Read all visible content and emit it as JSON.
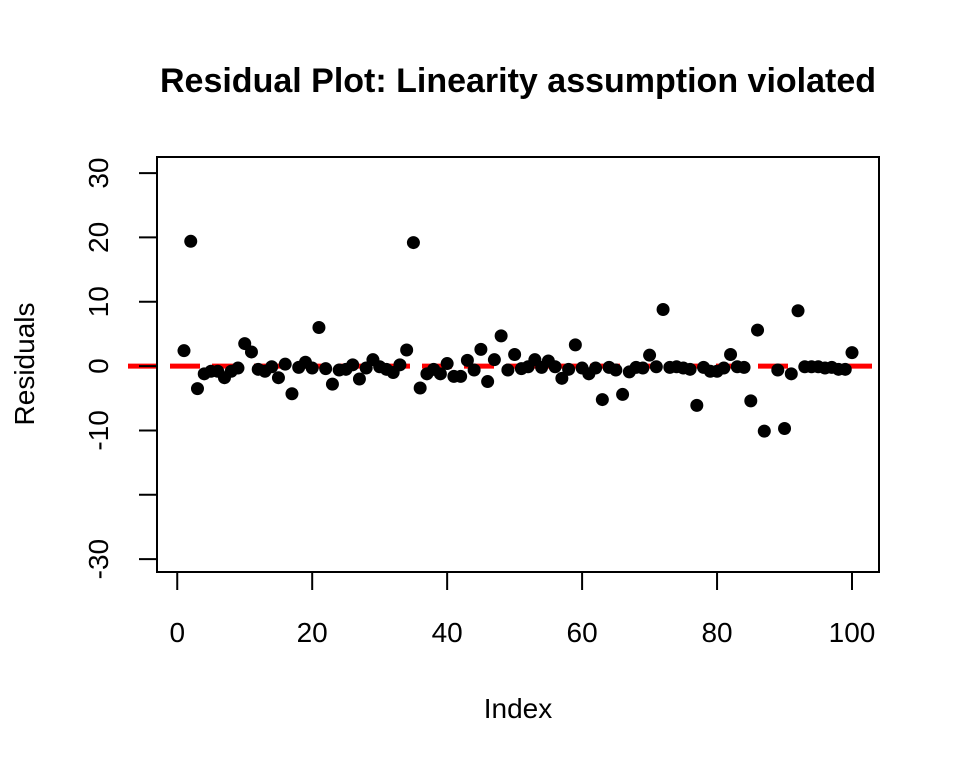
{
  "chart_data": {
    "type": "scatter",
    "title": "Residual Plot: Linearity assumption violated",
    "xlabel": "Index",
    "ylabel": "Residuals",
    "xlim": [
      -3,
      104
    ],
    "ylim": [
      -32,
      32.5
    ],
    "x_ticks": [
      0,
      20,
      40,
      60,
      80,
      100
    ],
    "x_tick_labels": [
      "0",
      "20",
      "40",
      "60",
      "80",
      "100"
    ],
    "y_ticks": [
      -30,
      -20,
      -10,
      0,
      10,
      20,
      30
    ],
    "y_tick_labels": [
      "-30",
      "",
      "-10",
      "0",
      "10",
      "20",
      "30"
    ],
    "grid": false,
    "reference_line": {
      "y": 0,
      "style": "dashed",
      "color": "#ff0000"
    },
    "colors": {
      "points": "#000000",
      "reference_line": "#ff0000"
    },
    "series": [
      {
        "x": [
          1,
          2,
          3,
          4,
          5,
          6,
          7,
          8,
          9,
          10,
          11,
          12,
          13,
          14,
          15,
          16,
          17,
          18,
          19,
          20,
          21,
          22,
          23,
          24,
          25,
          26,
          27,
          28,
          29,
          30,
          31,
          32,
          33,
          34,
          35,
          36,
          37,
          38,
          39,
          40,
          41,
          42,
          43,
          44,
          45,
          46,
          47,
          48,
          49,
          50,
          51,
          52,
          53,
          54,
          55,
          56,
          57,
          58,
          59,
          60,
          61,
          62,
          63,
          64,
          65,
          66,
          67,
          68,
          69,
          70,
          71,
          72,
          73,
          74,
          75,
          76,
          77,
          78,
          79,
          80,
          81,
          82,
          83,
          84,
          85,
          86,
          87,
          88,
          89,
          90,
          91,
          92,
          93,
          94,
          95,
          96,
          97,
          98,
          99,
          100
        ],
        "y": [
          2.4,
          19.4,
          -3.5,
          -1.2,
          -0.8,
          -0.8,
          -1.8,
          -0.8,
          -0.3,
          3.5,
          2.2,
          -0.5,
          -0.8,
          -0.1,
          -1.8,
          0.3,
          -4.3,
          -0.2,
          0.6,
          -0.3,
          6.0,
          -0.4,
          -2.8,
          -0.6,
          -0.5,
          0.2,
          -2.0,
          -0.3,
          1.0,
          -0.1,
          -0.5,
          -1.0,
          0.2,
          2.5,
          19.2,
          -3.4,
          -1.2,
          -0.5,
          -1.2,
          0.4,
          -1.6,
          -1.6,
          0.9,
          -0.6,
          2.6,
          -2.4,
          1.0,
          4.7,
          -0.6,
          1.8,
          -0.4,
          -0.1,
          1.0,
          -0.2,
          0.8,
          -0.1,
          -1.9,
          -0.5,
          3.3,
          -0.3,
          -1.2,
          -0.3,
          -5.2,
          -0.2,
          -0.6,
          -4.4,
          -0.9,
          -0.2,
          -0.3,
          1.7,
          -0.1,
          8.8,
          -0.2,
          -0.1,
          -0.3,
          -0.5,
          -6.1,
          -0.2,
          -0.8,
          -0.8,
          -0.3,
          1.8,
          -0.1,
          -0.2,
          -5.4,
          5.6,
          -10.1,
          null,
          -0.6,
          -9.7,
          -1.2,
          8.6,
          -0.1,
          -0.1,
          -0.1,
          -0.3,
          -0.2,
          -0.5,
          -0.5,
          2.1
        ]
      }
    ]
  }
}
